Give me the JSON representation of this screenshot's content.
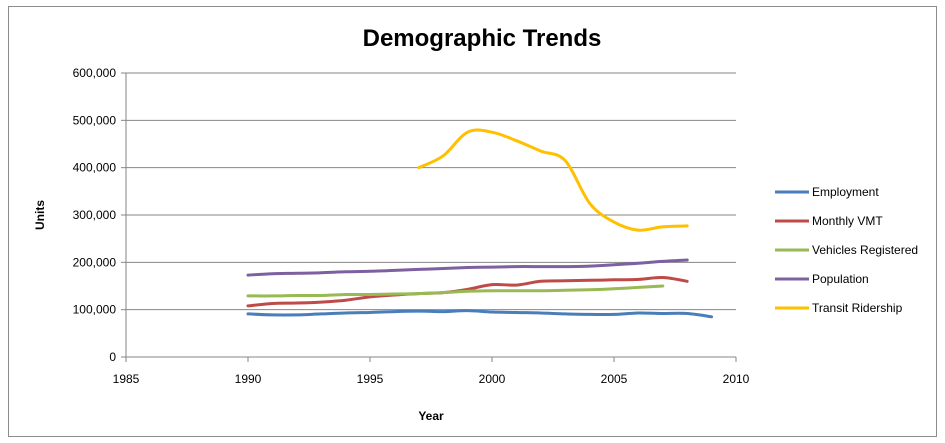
{
  "chart_data": {
    "type": "line",
    "title": "Demographic Trends",
    "xlabel": "Year",
    "ylabel": "Units",
    "xlim": [
      1985,
      2010
    ],
    "ylim": [
      0,
      600000
    ],
    "x_ticks": [
      "1985",
      "1990",
      "1995",
      "2000",
      "2005",
      "2010"
    ],
    "y_ticks": [
      "0",
      "100,000",
      "200,000",
      "300,000",
      "400,000",
      "500,000",
      "600,000"
    ],
    "x_tick_values": [
      1985,
      1990,
      1995,
      2000,
      2005,
      2010
    ],
    "y_tick_values": [
      0,
      100000,
      200000,
      300000,
      400000,
      500000,
      600000
    ],
    "grid": "horizontal",
    "legend_position": "right",
    "series": [
      {
        "name": "Employment",
        "color": "#4a7ebb",
        "x": [
          1990,
          1991,
          1992,
          1993,
          1994,
          1995,
          1996,
          1997,
          1998,
          1999,
          2000,
          2001,
          2002,
          2003,
          2004,
          2005,
          2006,
          2007,
          2008,
          2009
        ],
        "y": [
          91000,
          89000,
          89000,
          91000,
          93000,
          94000,
          96000,
          97000,
          96000,
          98000,
          95000,
          94000,
          93000,
          91000,
          90000,
          90000,
          93000,
          92000,
          92000,
          85000
        ]
      },
      {
        "name": "Monthly VMT",
        "color": "#be4b48",
        "x": [
          1990,
          1991,
          1992,
          1993,
          1994,
          1995,
          1996,
          1997,
          1998,
          1999,
          2000,
          2001,
          2002,
          2003,
          2004,
          2005,
          2006,
          2007,
          2008
        ],
        "y": [
          108000,
          113000,
          114000,
          116000,
          120000,
          127000,
          131000,
          134000,
          136000,
          143000,
          153000,
          152000,
          160000,
          161000,
          162000,
          163000,
          164000,
          168000,
          160000
        ]
      },
      {
        "name": "Vehicles Registered",
        "color": "#98b954",
        "x": [
          1990,
          1991,
          1992,
          1993,
          1994,
          1995,
          1996,
          1997,
          1998,
          1999,
          2000,
          2001,
          2002,
          2003,
          2004,
          2005,
          2006,
          2007
        ],
        "y": [
          129000,
          129000,
          130000,
          130000,
          132000,
          132000,
          133000,
          134000,
          136000,
          139000,
          140000,
          140000,
          140000,
          141000,
          142000,
          144000,
          147000,
          150000
        ]
      },
      {
        "name": "Population",
        "color": "#7d60a0",
        "x": [
          1990,
          1991,
          1992,
          1993,
          1994,
          1995,
          1996,
          1997,
          1998,
          1999,
          2000,
          2001,
          2002,
          2003,
          2004,
          2005,
          2006,
          2007,
          2008
        ],
        "y": [
          173000,
          176000,
          177000,
          178000,
          180000,
          181000,
          183000,
          185000,
          187000,
          189000,
          190000,
          191000,
          191000,
          191000,
          192000,
          195000,
          198000,
          202000,
          205000
        ]
      },
      {
        "name": "Transit Ridership",
        "color": "#ffc000",
        "x": [
          1997,
          1998,
          1999,
          2000,
          2001,
          2002,
          2003,
          2004,
          2005,
          2006,
          2007,
          2008
        ],
        "y": [
          400000,
          425000,
          475000,
          475000,
          457000,
          435000,
          415000,
          325000,
          285000,
          268000,
          275000,
          277000
        ]
      }
    ]
  }
}
